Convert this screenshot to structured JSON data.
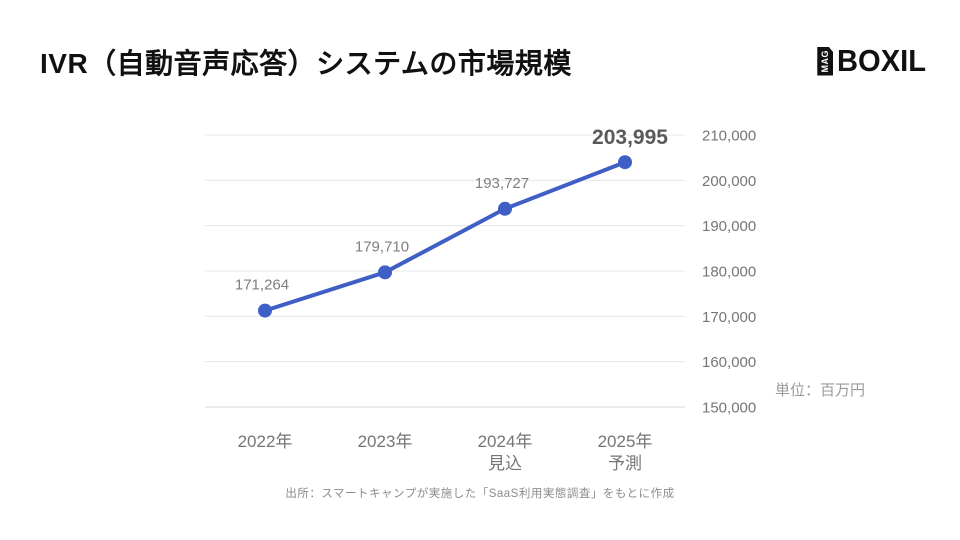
{
  "header": {
    "title": "IVR（自動音声応答）システムの市場規模",
    "logo": {
      "mag": "MAG",
      "boxil": "BOXIL"
    }
  },
  "chart_data": {
    "type": "line",
    "title": "IVR（自動音声応答）システムの市場規模",
    "categories": [
      [
        "2022年"
      ],
      [
        "2023年"
      ],
      [
        "2024年",
        "見込"
      ],
      [
        "2025年",
        "予測"
      ]
    ],
    "values": [
      171264,
      179710,
      193727,
      203995
    ],
    "value_labels": [
      "171,264",
      "179,710",
      "193,727",
      "203,995"
    ],
    "emphasized_index": 3,
    "ylim": [
      150000,
      210000
    ],
    "ytick_step": 10000,
    "ytick_labels": [
      "150,000",
      "160,000",
      "170,000",
      "180,000",
      "190,000",
      "200,000",
      "210,000"
    ],
    "yaxis_side": "right",
    "grid": true,
    "legend": "none",
    "unit_label": "単位：百万円",
    "line_color": "#3F5EC6",
    "marker_color": "#3F5EC6",
    "grid_color": "#e7e7e7",
    "baseline_color": "#d7d7d7",
    "tick_label_color": "#757575",
    "data_label_color": "#7f7f7f",
    "emphasized_label_color": "#595959"
  },
  "footer": {
    "source": "出所：スマートキャンプが実施した「SaaS利用実態調査」をもとに作成"
  }
}
